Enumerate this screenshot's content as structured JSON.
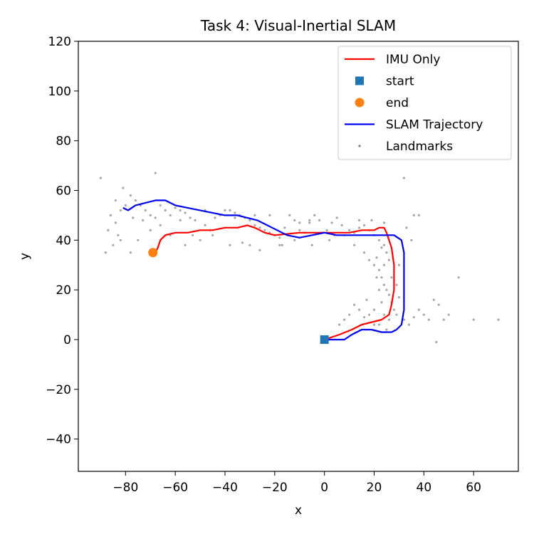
{
  "chart_data": {
    "type": "line",
    "title": "Task 4: Visual-Inertial SLAM",
    "xlabel": "x",
    "ylabel": "y",
    "xlim": [
      -99,
      78
    ],
    "ylim": [
      -53,
      120
    ],
    "xticks": [
      -80,
      -60,
      -40,
      -20,
      0,
      20,
      40,
      60
    ],
    "yticks": [
      -40,
      -20,
      0,
      20,
      40,
      60,
      80,
      100,
      120
    ],
    "xtick_labels": [
      "−80",
      "−60",
      "−40",
      "−20",
      "0",
      "20",
      "40",
      "60"
    ],
    "ytick_labels": [
      "−40",
      "−20",
      "0",
      "20",
      "40",
      "60",
      "80",
      "100",
      "120"
    ],
    "grid": false,
    "legend_position": "top-right",
    "colors": {
      "imu": "#ff0000",
      "slam": "#0000ee",
      "start": "#1f77b4",
      "end": "#ff7f0e",
      "landmarks": "#000000"
    },
    "series": [
      {
        "name": "IMU Only",
        "kind": "line",
        "points": [
          [
            0,
            0
          ],
          [
            6,
            2
          ],
          [
            11,
            4
          ],
          [
            15,
            6
          ],
          [
            19,
            7
          ],
          [
            23,
            8
          ],
          [
            26,
            10
          ],
          [
            27,
            14
          ],
          [
            28,
            20
          ],
          [
            28,
            30
          ],
          [
            27,
            37
          ],
          [
            25,
            43
          ],
          [
            24,
            45
          ],
          [
            22,
            45
          ],
          [
            20,
            44
          ],
          [
            15,
            44
          ],
          [
            10,
            43
          ],
          [
            0,
            43
          ],
          [
            -10,
            43
          ],
          [
            -20,
            42
          ],
          [
            -24,
            43
          ],
          [
            -28,
            45
          ],
          [
            -31,
            46
          ],
          [
            -35,
            45
          ],
          [
            -40,
            45
          ],
          [
            -45,
            44
          ],
          [
            -50,
            44
          ],
          [
            -55,
            43
          ],
          [
            -60,
            43
          ],
          [
            -64,
            42
          ],
          [
            -66,
            40
          ],
          [
            -67,
            37
          ],
          [
            -68,
            35
          ],
          [
            -69,
            35
          ]
        ]
      },
      {
        "name": "SLAM Trajectory",
        "kind": "line",
        "points": [
          [
            0,
            0
          ],
          [
            4,
            0
          ],
          [
            8,
            0
          ],
          [
            11,
            2
          ],
          [
            15,
            4
          ],
          [
            19,
            4
          ],
          [
            23,
            3
          ],
          [
            27,
            3
          ],
          [
            29,
            4
          ],
          [
            31,
            6
          ],
          [
            32,
            12
          ],
          [
            32,
            20
          ],
          [
            32,
            28
          ],
          [
            32,
            35
          ],
          [
            31,
            40
          ],
          [
            28,
            42
          ],
          [
            24,
            42
          ],
          [
            20,
            42
          ],
          [
            15,
            42
          ],
          [
            10,
            42
          ],
          [
            5,
            42
          ],
          [
            0,
            43
          ],
          [
            -5,
            42
          ],
          [
            -10,
            41
          ],
          [
            -15,
            42
          ],
          [
            -19,
            44
          ],
          [
            -23,
            46
          ],
          [
            -27,
            48
          ],
          [
            -31,
            49
          ],
          [
            -35,
            50
          ],
          [
            -40,
            50
          ],
          [
            -45,
            51
          ],
          [
            -50,
            52
          ],
          [
            -55,
            53
          ],
          [
            -60,
            54
          ],
          [
            -64,
            56
          ],
          [
            -68,
            56
          ],
          [
            -72,
            55
          ],
          [
            -76,
            54
          ],
          [
            -79,
            52
          ],
          [
            -81,
            53
          ]
        ]
      },
      {
        "name": "start",
        "kind": "marker",
        "marker": "square",
        "points": [
          [
            0,
            0
          ]
        ]
      },
      {
        "name": "end",
        "kind": "marker",
        "marker": "circle",
        "points": [
          [
            -69,
            35
          ]
        ]
      },
      {
        "name": "Landmarks",
        "kind": "scatter",
        "points": [
          [
            -90,
            65
          ],
          [
            -87,
            44
          ],
          [
            -85,
            38
          ],
          [
            -83,
            42
          ],
          [
            -84,
            47
          ],
          [
            -82,
            52
          ],
          [
            -80,
            54
          ],
          [
            -81,
            61
          ],
          [
            -78,
            58
          ],
          [
            -76,
            56
          ],
          [
            -74,
            54
          ],
          [
            -72,
            52
          ],
          [
            -70,
            50
          ],
          [
            -68,
            49
          ],
          [
            -66,
            54
          ],
          [
            -64,
            52
          ],
          [
            -62,
            50
          ],
          [
            -60,
            53
          ],
          [
            -58,
            52
          ],
          [
            -56,
            51
          ],
          [
            -54,
            49
          ],
          [
            -52,
            48
          ],
          [
            -56,
            38
          ],
          [
            -50,
            40
          ],
          [
            -48,
            46
          ],
          [
            -46,
            44
          ],
          [
            -44,
            49
          ],
          [
            -42,
            50
          ],
          [
            -40,
            52
          ],
          [
            -38,
            52
          ],
          [
            -36,
            51
          ],
          [
            -34,
            50
          ],
          [
            -32,
            49
          ],
          [
            -30,
            48
          ],
          [
            -28,
            46
          ],
          [
            -26,
            45
          ],
          [
            -24,
            44
          ],
          [
            -22,
            43
          ],
          [
            -20,
            42
          ],
          [
            -18,
            41
          ],
          [
            -17,
            38
          ],
          [
            -16,
            45
          ],
          [
            -14,
            50
          ],
          [
            -12,
            48
          ],
          [
            -10,
            44
          ],
          [
            -8,
            43
          ],
          [
            -6,
            47
          ],
          [
            -4,
            50
          ],
          [
            -2,
            48
          ],
          [
            -1,
            43
          ],
          [
            1,
            44
          ],
          [
            3,
            47
          ],
          [
            5,
            49
          ],
          [
            7,
            46
          ],
          [
            10,
            44
          ],
          [
            12,
            43
          ],
          [
            14,
            45
          ],
          [
            16,
            46
          ],
          [
            18,
            44
          ],
          [
            20,
            42
          ],
          [
            22,
            40
          ],
          [
            24,
            38
          ],
          [
            25,
            35
          ],
          [
            26,
            32
          ],
          [
            24,
            30
          ],
          [
            22,
            28
          ],
          [
            23,
            25
          ],
          [
            24,
            22
          ],
          [
            25,
            20
          ],
          [
            26,
            18
          ],
          [
            27,
            15
          ],
          [
            28,
            12
          ],
          [
            29,
            10
          ],
          [
            26,
            8
          ],
          [
            20,
            6
          ],
          [
            16,
            9
          ],
          [
            14,
            12
          ],
          [
            10,
            10
          ],
          [
            8,
            8
          ],
          [
            6,
            6
          ],
          [
            32,
            8
          ],
          [
            34,
            6
          ],
          [
            36,
            9
          ],
          [
            38,
            12
          ],
          [
            40,
            10
          ],
          [
            42,
            8
          ],
          [
            44,
            16
          ],
          [
            46,
            14
          ],
          [
            48,
            8
          ],
          [
            50,
            10
          ],
          [
            54,
            25
          ],
          [
            60,
            8
          ],
          [
            70,
            8
          ],
          [
            45,
            -1
          ],
          [
            32,
            65
          ],
          [
            -68,
            67
          ],
          [
            -75,
            40
          ],
          [
            -78,
            35
          ],
          [
            -88,
            35
          ],
          [
            -82,
            40
          ],
          [
            -70,
            44
          ],
          [
            -62,
            42
          ],
          [
            -53,
            42
          ],
          [
            -45,
            42
          ],
          [
            -38,
            38
          ],
          [
            -33,
            39
          ],
          [
            -30,
            38
          ],
          [
            -26,
            36
          ],
          [
            -18,
            38
          ],
          [
            -12,
            40
          ],
          [
            -5,
            38
          ],
          [
            8,
            42
          ],
          [
            12,
            38
          ],
          [
            16,
            35
          ],
          [
            18,
            32
          ],
          [
            20,
            30
          ],
          [
            21,
            25
          ],
          [
            22,
            20
          ],
          [
            23,
            15
          ],
          [
            24,
            10
          ],
          [
            20,
            12
          ],
          [
            18,
            10
          ],
          [
            30,
            30
          ],
          [
            33,
            45
          ],
          [
            35,
            40
          ],
          [
            38,
            50
          ],
          [
            36,
            50
          ],
          [
            -86,
            50
          ],
          [
            -84,
            56
          ],
          [
            -77,
            49
          ],
          [
            -73,
            48
          ],
          [
            -66,
            46
          ],
          [
            -58,
            48
          ],
          [
            -48,
            52
          ],
          [
            -36,
            49
          ],
          [
            -28,
            50
          ],
          [
            -22,
            50
          ],
          [
            -10,
            47
          ],
          [
            -6,
            48
          ],
          [
            2,
            40
          ],
          [
            4,
            42
          ],
          [
            14,
            48
          ],
          [
            19,
            48
          ],
          [
            24,
            47
          ],
          [
            27,
            25
          ],
          [
            29,
            22
          ],
          [
            30,
            17
          ],
          [
            25,
            4
          ],
          [
            22,
            6
          ],
          [
            12,
            14
          ],
          [
            17,
            16
          ],
          [
            21,
            33
          ],
          [
            23,
            37
          ]
        ]
      }
    ]
  }
}
